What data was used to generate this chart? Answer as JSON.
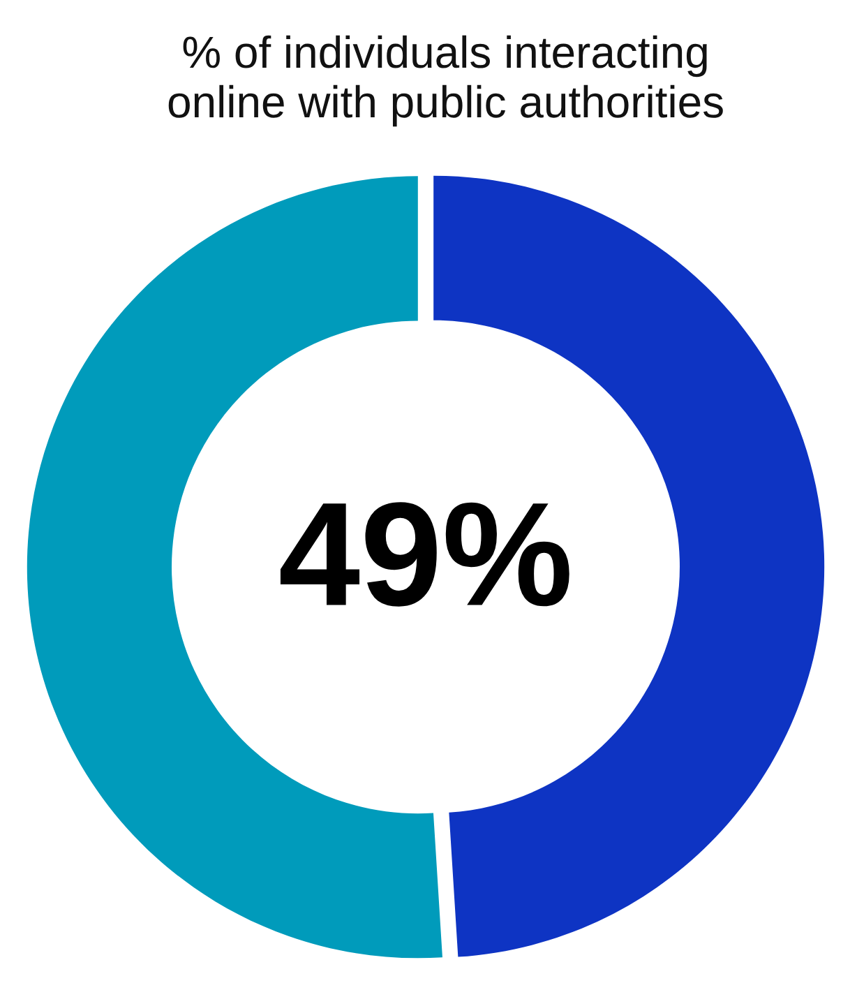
{
  "chart_data": {
    "type": "donut",
    "title": "% of individuals interacting\nonline with public authorities",
    "categories": [
      null,
      null
    ],
    "values": [
      49,
      51
    ],
    "colors": [
      "#0e34c3",
      "#009bbb"
    ],
    "annotations": [
      "49%"
    ]
  }
}
